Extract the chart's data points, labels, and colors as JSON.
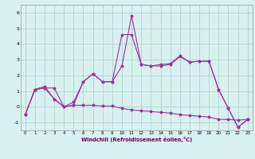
{
  "xlabel": "Windchill (Refroidissement éolien,°C)",
  "x": [
    0,
    1,
    2,
    3,
    4,
    5,
    6,
    7,
    8,
    9,
    10,
    11,
    12,
    13,
    14,
    15,
    16,
    17,
    18,
    19,
    20,
    21,
    22,
    23
  ],
  "s1": [
    -0.5,
    1.1,
    1.2,
    0.5,
    0.0,
    0.1,
    1.6,
    2.1,
    1.6,
    1.6,
    2.6,
    5.8,
    2.7,
    2.6,
    2.6,
    2.7,
    3.2,
    2.85,
    2.9,
    2.9,
    1.1,
    -0.1,
    -1.3,
    -0.8
  ],
  "s2": [
    -0.5,
    1.1,
    1.3,
    0.5,
    0.0,
    0.3,
    1.6,
    2.1,
    1.6,
    1.6,
    4.6,
    4.6,
    2.7,
    2.6,
    2.7,
    2.75,
    3.25,
    2.85,
    2.9,
    2.9,
    1.1,
    -0.1,
    -1.3,
    -0.8
  ],
  "s3": [
    -0.5,
    1.1,
    1.2,
    1.2,
    0.0,
    0.1,
    0.1,
    0.1,
    0.05,
    0.05,
    -0.1,
    -0.2,
    -0.25,
    -0.3,
    -0.35,
    -0.4,
    -0.5,
    -0.55,
    -0.6,
    -0.65,
    -0.8,
    -0.8,
    -0.85,
    -0.8
  ],
  "line_color": "#993399",
  "bg_color": "#d8f0f0",
  "grid_color": "#aacccc",
  "ylim": [
    -1.5,
    6.5
  ],
  "xlim": [
    -0.5,
    23.5
  ]
}
